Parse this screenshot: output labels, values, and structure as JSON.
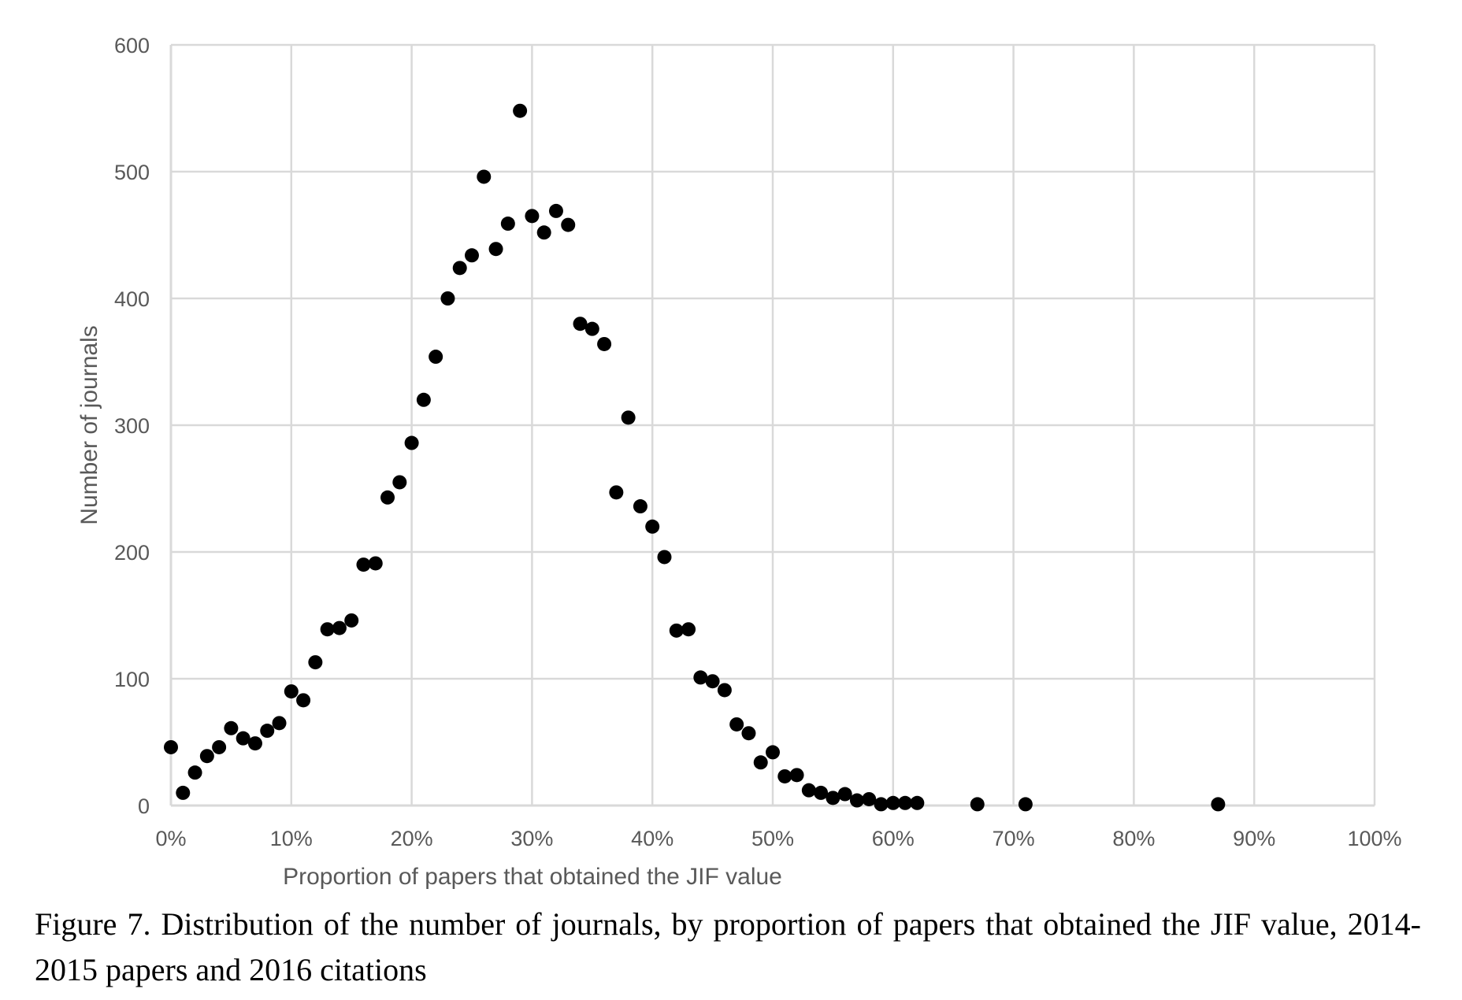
{
  "caption": "Figure 7. Distribution of the number of journals, by proportion of papers that obtained the JIF value, 2014-2015 papers and 2016 citations",
  "chart_data": {
    "type": "scatter",
    "title": "",
    "xlabel": "Proportion of papers that obtained the JIF value",
    "ylabel": "Number of journals",
    "xlim": [
      0,
      100
    ],
    "ylim": [
      0,
      600
    ],
    "x_ticks": [
      0,
      10,
      20,
      30,
      40,
      50,
      60,
      70,
      80,
      90,
      100
    ],
    "x_tick_labels": [
      "0%",
      "10%",
      "20%",
      "30%",
      "40%",
      "50%",
      "60%",
      "70%",
      "80%",
      "90%",
      "100%"
    ],
    "y_ticks": [
      0,
      100,
      200,
      300,
      400,
      500,
      600
    ],
    "y_tick_labels": [
      "0",
      "100",
      "200",
      "300",
      "400",
      "500",
      "600"
    ],
    "grid": true,
    "legend": "none",
    "marker_color": "#000000",
    "grid_color": "#d9d9d9",
    "points": [
      {
        "x": 0,
        "y": 46
      },
      {
        "x": 1,
        "y": 10
      },
      {
        "x": 2,
        "y": 26
      },
      {
        "x": 3,
        "y": 39
      },
      {
        "x": 4,
        "y": 46
      },
      {
        "x": 5,
        "y": 61
      },
      {
        "x": 6,
        "y": 53
      },
      {
        "x": 7,
        "y": 49
      },
      {
        "x": 8,
        "y": 59
      },
      {
        "x": 9,
        "y": 65
      },
      {
        "x": 10,
        "y": 90
      },
      {
        "x": 11,
        "y": 83
      },
      {
        "x": 12,
        "y": 113
      },
      {
        "x": 13,
        "y": 139
      },
      {
        "x": 14,
        "y": 140
      },
      {
        "x": 15,
        "y": 146
      },
      {
        "x": 16,
        "y": 190
      },
      {
        "x": 17,
        "y": 191
      },
      {
        "x": 18,
        "y": 243
      },
      {
        "x": 19,
        "y": 255
      },
      {
        "x": 20,
        "y": 286
      },
      {
        "x": 21,
        "y": 320
      },
      {
        "x": 22,
        "y": 354
      },
      {
        "x": 23,
        "y": 400
      },
      {
        "x": 24,
        "y": 424
      },
      {
        "x": 25,
        "y": 434
      },
      {
        "x": 26,
        "y": 496
      },
      {
        "x": 27,
        "y": 439
      },
      {
        "x": 28,
        "y": 459
      },
      {
        "x": 29,
        "y": 548
      },
      {
        "x": 30,
        "y": 465
      },
      {
        "x": 31,
        "y": 452
      },
      {
        "x": 32,
        "y": 469
      },
      {
        "x": 33,
        "y": 458
      },
      {
        "x": 34,
        "y": 380
      },
      {
        "x": 35,
        "y": 376
      },
      {
        "x": 36,
        "y": 364
      },
      {
        "x": 37,
        "y": 247
      },
      {
        "x": 38,
        "y": 306
      },
      {
        "x": 39,
        "y": 236
      },
      {
        "x": 40,
        "y": 220
      },
      {
        "x": 41,
        "y": 196
      },
      {
        "x": 42,
        "y": 138
      },
      {
        "x": 43,
        "y": 139
      },
      {
        "x": 44,
        "y": 101
      },
      {
        "x": 45,
        "y": 98
      },
      {
        "x": 46,
        "y": 91
      },
      {
        "x": 47,
        "y": 64
      },
      {
        "x": 48,
        "y": 57
      },
      {
        "x": 49,
        "y": 34
      },
      {
        "x": 50,
        "y": 42
      },
      {
        "x": 51,
        "y": 23
      },
      {
        "x": 52,
        "y": 24
      },
      {
        "x": 53,
        "y": 12
      },
      {
        "x": 54,
        "y": 10
      },
      {
        "x": 55,
        "y": 6
      },
      {
        "x": 56,
        "y": 9
      },
      {
        "x": 57,
        "y": 4
      },
      {
        "x": 58,
        "y": 5
      },
      {
        "x": 59,
        "y": 1
      },
      {
        "x": 60,
        "y": 2
      },
      {
        "x": 61,
        "y": 2
      },
      {
        "x": 62,
        "y": 2
      },
      {
        "x": 67,
        "y": 1
      },
      {
        "x": 71,
        "y": 1
      },
      {
        "x": 87,
        "y": 1
      }
    ]
  }
}
